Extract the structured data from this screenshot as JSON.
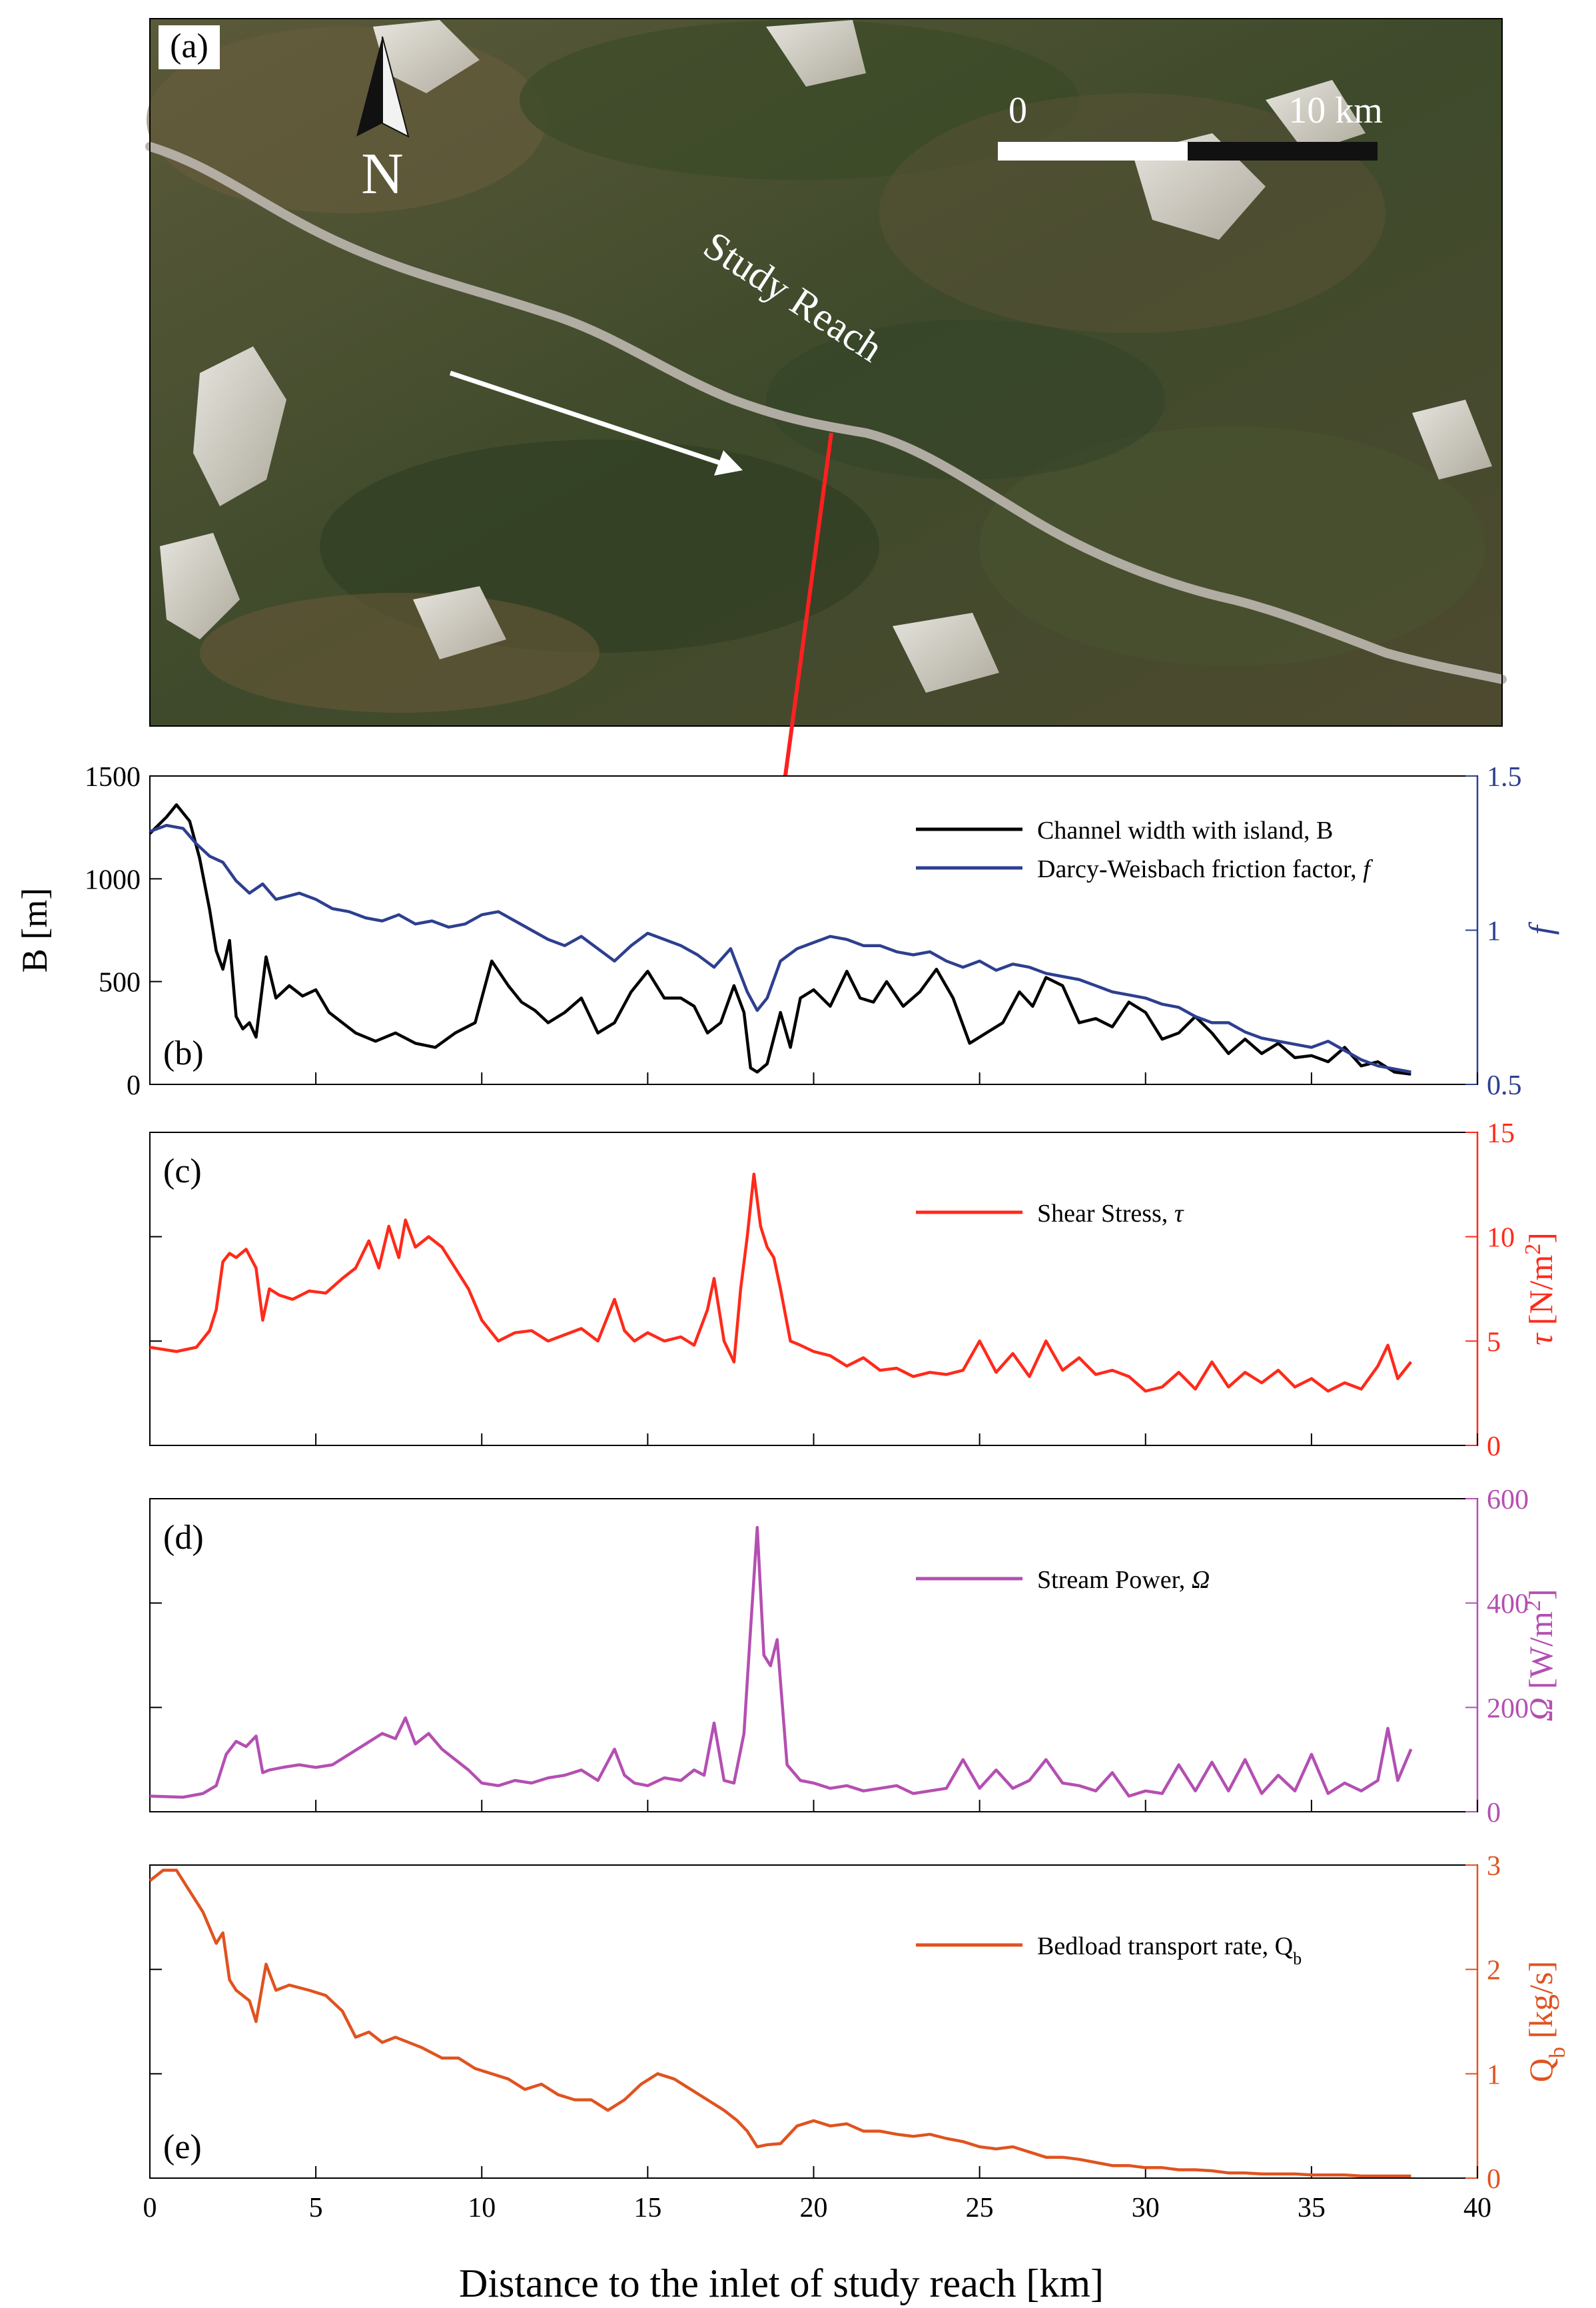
{
  "figure": {
    "xlabel": "Distance to the inlet of study reach [km]",
    "xlim": [
      0,
      40
    ],
    "xticks": [
      0,
      5,
      10,
      15,
      20,
      25,
      30,
      35,
      40
    ]
  },
  "map": {
    "panel_label": "(a)",
    "north_label": "N",
    "scale_labels": [
      "0",
      "10 km"
    ],
    "reach_label": "Study Reach",
    "colors": {
      "arrow_flow": "#ffffff",
      "arrow_link": "#ff2020",
      "river": "#b7b2aa",
      "scale_dark": "#111111",
      "scale_light": "#ffffff"
    }
  },
  "chart_data": [
    {
      "type": "line",
      "panel_label": "(b)",
      "ylabel": "B [m]",
      "ylabel_right": "f",
      "ylim": [
        0,
        1500
      ],
      "yticks": [
        0,
        500,
        1000,
        1500
      ],
      "ylim_right": [
        0.5,
        1.5
      ],
      "yticks_right": [
        0.5,
        1,
        1.5
      ],
      "grid": false,
      "legend_position": "top-right",
      "series": [
        {
          "name": "Channel width with island, B",
          "axis": "left",
          "color": "#000000",
          "x": [
            0,
            0.5,
            0.8,
            1.2,
            1.5,
            1.8,
            2.0,
            2.2,
            2.4,
            2.6,
            2.8,
            3.0,
            3.2,
            3.5,
            3.8,
            4.2,
            4.6,
            5.0,
            5.4,
            5.8,
            6.2,
            6.8,
            7.4,
            8.0,
            8.6,
            9.2,
            9.8,
            10.3,
            10.8,
            11.2,
            11.6,
            12.0,
            12.5,
            13.0,
            13.5,
            14.0,
            14.5,
            15.0,
            15.5,
            16.0,
            16.4,
            16.8,
            17.2,
            17.6,
            17.9,
            18.1,
            18.3,
            18.6,
            19.0,
            19.3,
            19.6,
            20.0,
            20.5,
            21.0,
            21.4,
            21.8,
            22.2,
            22.7,
            23.2,
            23.7,
            24.2,
            24.7,
            25.2,
            25.7,
            26.2,
            26.6,
            27.0,
            27.5,
            28.0,
            28.5,
            29.0,
            29.5,
            30.0,
            30.5,
            31.0,
            31.5,
            32.0,
            32.5,
            33.0,
            33.5,
            34.0,
            34.5,
            35.0,
            35.5,
            36.0,
            36.5,
            37.0,
            37.5,
            38.0
          ],
          "y": [
            1220,
            1300,
            1360,
            1280,
            1100,
            850,
            650,
            560,
            700,
            330,
            270,
            300,
            230,
            620,
            420,
            480,
            430,
            460,
            350,
            300,
            250,
            210,
            250,
            200,
            180,
            250,
            300,
            600,
            480,
            400,
            360,
            300,
            350,
            420,
            250,
            300,
            450,
            550,
            420,
            420,
            380,
            250,
            300,
            480,
            350,
            80,
            60,
            100,
            350,
            180,
            420,
            460,
            380,
            550,
            420,
            400,
            500,
            380,
            450,
            560,
            420,
            200,
            250,
            300,
            450,
            380,
            520,
            480,
            300,
            320,
            280,
            400,
            350,
            220,
            250,
            330,
            250,
            150,
            220,
            150,
            200,
            130,
            140,
            110,
            180,
            90,
            110,
            60,
            50
          ]
        },
        {
          "name": "Darcy-Weisbach friction factor, f",
          "axis": "right",
          "color": "#2d3f8f",
          "x": [
            0,
            0.5,
            1.0,
            1.4,
            1.8,
            2.2,
            2.6,
            3.0,
            3.4,
            3.8,
            4.5,
            5.0,
            5.5,
            6.0,
            6.5,
            7.0,
            7.5,
            8.0,
            8.5,
            9.0,
            9.5,
            10.0,
            10.5,
            11.0,
            11.5,
            12.0,
            12.5,
            13.0,
            13.5,
            14.0,
            14.5,
            15.0,
            15.5,
            16.0,
            16.5,
            17.0,
            17.5,
            18.0,
            18.3,
            18.6,
            19.0,
            19.5,
            20.0,
            20.5,
            21.0,
            21.5,
            22.0,
            22.5,
            23.0,
            23.5,
            24.0,
            24.5,
            25.0,
            25.5,
            26.0,
            26.5,
            27.0,
            27.5,
            28.0,
            28.5,
            29.0,
            29.5,
            30.0,
            30.5,
            31.0,
            31.5,
            32.0,
            32.5,
            33.0,
            33.5,
            34.0,
            34.5,
            35.0,
            35.5,
            36.0,
            36.5,
            37.0,
            37.5,
            38.0
          ],
          "y": [
            1.32,
            1.34,
            1.33,
            1.28,
            1.24,
            1.22,
            1.16,
            1.12,
            1.15,
            1.1,
            1.12,
            1.1,
            1.07,
            1.06,
            1.04,
            1.03,
            1.05,
            1.02,
            1.03,
            1.01,
            1.02,
            1.05,
            1.06,
            1.03,
            1.0,
            0.97,
            0.95,
            0.98,
            0.94,
            0.9,
            0.95,
            0.99,
            0.97,
            0.95,
            0.92,
            0.88,
            0.94,
            0.8,
            0.74,
            0.78,
            0.9,
            0.94,
            0.96,
            0.98,
            0.97,
            0.95,
            0.95,
            0.93,
            0.92,
            0.93,
            0.9,
            0.88,
            0.9,
            0.87,
            0.89,
            0.88,
            0.86,
            0.85,
            0.84,
            0.82,
            0.8,
            0.79,
            0.78,
            0.76,
            0.75,
            0.72,
            0.7,
            0.7,
            0.67,
            0.65,
            0.64,
            0.63,
            0.62,
            0.64,
            0.61,
            0.58,
            0.56,
            0.55,
            0.54
          ]
        }
      ]
    },
    {
      "type": "line",
      "panel_label": "(c)",
      "ylabel_right": "τ [N/m²]",
      "ylim_right": [
        0,
        15
      ],
      "yticks_right": [
        0,
        5,
        10,
        15
      ],
      "grid": false,
      "legend_position": "top-right",
      "series": [
        {
          "name": "Shear Stress,  τ",
          "axis": "right",
          "color": "#ff2a1a",
          "x": [
            0,
            0.8,
            1.4,
            1.8,
            2.0,
            2.2,
            2.4,
            2.6,
            2.9,
            3.2,
            3.4,
            3.6,
            3.9,
            4.3,
            4.8,
            5.3,
            5.8,
            6.2,
            6.6,
            6.9,
            7.2,
            7.5,
            7.7,
            8.0,
            8.4,
            8.8,
            9.2,
            9.6,
            10.0,
            10.5,
            11.0,
            11.5,
            12.0,
            12.5,
            13.0,
            13.5,
            14.0,
            14.3,
            14.6,
            15.0,
            15.5,
            16.0,
            16.4,
            16.8,
            17.0,
            17.3,
            17.6,
            17.8,
            18.0,
            18.2,
            18.4,
            18.6,
            18.8,
            19.0,
            19.3,
            19.6,
            20.0,
            20.5,
            21.0,
            21.5,
            22.0,
            22.5,
            23.0,
            23.5,
            24.0,
            24.5,
            25.0,
            25.5,
            26.0,
            26.5,
            27.0,
            27.5,
            28.0,
            28.5,
            29.0,
            29.5,
            30.0,
            30.5,
            31.0,
            31.5,
            32.0,
            32.5,
            33.0,
            33.5,
            34.0,
            34.5,
            35.0,
            35.5,
            36.0,
            36.5,
            37.0,
            37.3,
            37.6,
            38.0
          ],
          "y": [
            4.7,
            4.5,
            4.7,
            5.5,
            6.5,
            8.8,
            9.2,
            9.0,
            9.4,
            8.5,
            6.0,
            7.5,
            7.2,
            7.0,
            7.4,
            7.3,
            8.0,
            8.5,
            9.8,
            8.5,
            10.5,
            9.0,
            10.8,
            9.5,
            10.0,
            9.5,
            8.5,
            7.5,
            6.0,
            5.0,
            5.4,
            5.5,
            5.0,
            5.3,
            5.6,
            5.0,
            7.0,
            5.5,
            5.0,
            5.4,
            5.0,
            5.2,
            4.8,
            6.5,
            8.0,
            5.0,
            4.0,
            7.5,
            10.0,
            13.0,
            10.5,
            9.5,
            9.0,
            7.5,
            5.0,
            4.8,
            4.5,
            4.3,
            3.8,
            4.2,
            3.6,
            3.7,
            3.3,
            3.5,
            3.4,
            3.6,
            5.0,
            3.5,
            4.4,
            3.3,
            5.0,
            3.6,
            4.2,
            3.4,
            3.6,
            3.3,
            2.6,
            2.8,
            3.5,
            2.7,
            4.0,
            2.8,
            3.5,
            3.0,
            3.6,
            2.8,
            3.2,
            2.6,
            3.0,
            2.7,
            3.8,
            4.8,
            3.2,
            4.0
          ]
        }
      ]
    },
    {
      "type": "line",
      "panel_label": "(d)",
      "ylabel_right": "Ω [W/m²]",
      "ylim_right": [
        0,
        600
      ],
      "yticks_right": [
        0,
        200,
        400,
        600
      ],
      "grid": false,
      "legend_position": "top-right",
      "series": [
        {
          "name": "Stream Power,  Ω",
          "axis": "right",
          "color": "#b44fb2",
          "x": [
            0,
            1.0,
            1.6,
            2.0,
            2.3,
            2.6,
            2.9,
            3.2,
            3.4,
            3.6,
            4.0,
            4.5,
            5.0,
            5.5,
            6.0,
            6.5,
            7.0,
            7.4,
            7.7,
            8.0,
            8.4,
            8.8,
            9.2,
            9.6,
            10.0,
            10.5,
            11.0,
            11.5,
            12.0,
            12.5,
            13.0,
            13.5,
            14.0,
            14.3,
            14.6,
            15.0,
            15.5,
            16.0,
            16.4,
            16.7,
            17.0,
            17.3,
            17.6,
            17.9,
            18.1,
            18.3,
            18.5,
            18.7,
            18.9,
            19.2,
            19.6,
            20.0,
            20.5,
            21.0,
            21.5,
            22.0,
            22.5,
            23.0,
            23.5,
            24.0,
            24.5,
            25.0,
            25.5,
            26.0,
            26.5,
            27.0,
            27.5,
            28.0,
            28.5,
            29.0,
            29.5,
            30.0,
            30.5,
            31.0,
            31.5,
            32.0,
            32.5,
            33.0,
            33.5,
            34.0,
            34.5,
            35.0,
            35.5,
            36.0,
            36.5,
            37.0,
            37.3,
            37.6,
            38.0
          ],
          "y": [
            30,
            28,
            35,
            50,
            110,
            135,
            125,
            145,
            75,
            80,
            85,
            90,
            85,
            90,
            110,
            130,
            150,
            140,
            180,
            130,
            150,
            120,
            100,
            80,
            55,
            50,
            60,
            55,
            65,
            70,
            80,
            60,
            120,
            70,
            55,
            50,
            65,
            60,
            80,
            70,
            170,
            60,
            55,
            150,
            350,
            545,
            300,
            280,
            330,
            90,
            60,
            55,
            45,
            50,
            40,
            45,
            50,
            35,
            40,
            45,
            100,
            45,
            80,
            45,
            60,
            100,
            55,
            50,
            40,
            75,
            30,
            40,
            35,
            90,
            40,
            95,
            40,
            100,
            35,
            70,
            40,
            110,
            35,
            55,
            40,
            60,
            160,
            60,
            120
          ]
        }
      ]
    },
    {
      "type": "line",
      "panel_label": "(e)",
      "ylabel_right": "Q_b [kg/s]",
      "ylim_right": [
        0,
        3
      ],
      "yticks_right": [
        0,
        1,
        2,
        3
      ],
      "grid": false,
      "legend_position": "top-right",
      "series": [
        {
          "name": "Bedload transport rate, Q_b",
          "axis": "right",
          "color": "#e0531f",
          "x": [
            0,
            0.4,
            0.8,
            1.2,
            1.6,
            2.0,
            2.2,
            2.4,
            2.6,
            3.0,
            3.2,
            3.5,
            3.8,
            4.2,
            4.8,
            5.3,
            5.8,
            6.2,
            6.6,
            7.0,
            7.4,
            7.8,
            8.2,
            8.8,
            9.3,
            9.8,
            10.3,
            10.8,
            11.3,
            11.8,
            12.3,
            12.8,
            13.3,
            13.8,
            14.3,
            14.8,
            15.3,
            15.8,
            16.3,
            16.8,
            17.3,
            17.7,
            18.0,
            18.3,
            18.6,
            19.0,
            19.5,
            20.0,
            20.5,
            21.0,
            21.5,
            22.0,
            22.5,
            23.0,
            23.5,
            24.0,
            24.5,
            25.0,
            25.5,
            26.0,
            26.5,
            27.0,
            27.5,
            28.0,
            28.5,
            29.0,
            29.5,
            30.0,
            30.5,
            31.0,
            31.5,
            32.0,
            32.5,
            33.0,
            33.5,
            34.0,
            34.5,
            35.0,
            35.5,
            36.0,
            36.5,
            37.0,
            37.5,
            38.0
          ],
          "y": [
            2.85,
            2.95,
            2.95,
            2.75,
            2.55,
            2.25,
            2.35,
            1.9,
            1.8,
            1.7,
            1.5,
            2.05,
            1.8,
            1.85,
            1.8,
            1.75,
            1.6,
            1.35,
            1.4,
            1.3,
            1.35,
            1.3,
            1.25,
            1.15,
            1.15,
            1.05,
            1.0,
            0.95,
            0.85,
            0.9,
            0.8,
            0.75,
            0.75,
            0.65,
            0.75,
            0.9,
            1.0,
            0.95,
            0.85,
            0.75,
            0.65,
            0.55,
            0.45,
            0.3,
            0.32,
            0.33,
            0.5,
            0.55,
            0.5,
            0.52,
            0.45,
            0.45,
            0.42,
            0.4,
            0.42,
            0.38,
            0.35,
            0.3,
            0.28,
            0.3,
            0.25,
            0.2,
            0.2,
            0.18,
            0.15,
            0.12,
            0.12,
            0.1,
            0.1,
            0.08,
            0.08,
            0.07,
            0.05,
            0.05,
            0.04,
            0.04,
            0.04,
            0.03,
            0.03,
            0.03,
            0.02,
            0.02,
            0.02,
            0.02
          ]
        }
      ]
    }
  ]
}
